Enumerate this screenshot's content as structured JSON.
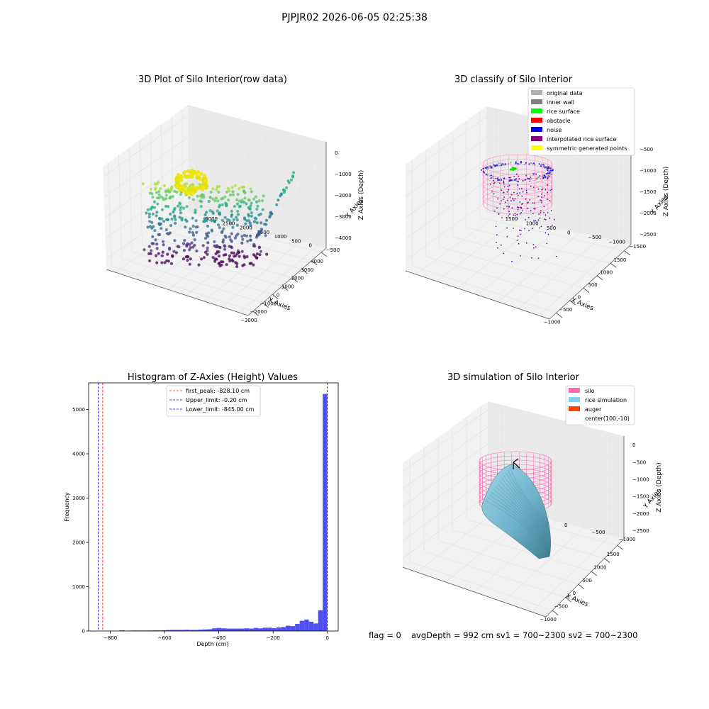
{
  "suptitle": "PJPJR02 2026-06-05 02:25:38",
  "footer": {
    "flag": "flag = 0",
    "stats": "avgDepth = 992 cm  sv1 = 700~2300  sv2 = 700~2300"
  },
  "chart_data": [
    {
      "type": "scatter",
      "title": "3D Plot of Silo Interior(row data)",
      "xlabel": "X Axies",
      "ylabel": "Y Axies",
      "zlabel": "Z Axies (Depth)",
      "x_ticks": [
        "−3000",
        "−2000",
        "−1000",
        "0",
        "1000",
        "2000",
        "3000",
        "4000"
      ],
      "y_ticks": [
        "−500",
        "0",
        "500",
        "1000",
        "1500",
        "2000",
        "2500",
        "3000"
      ],
      "z_ticks": [
        "0",
        "−1000",
        "−2000",
        "−3000",
        "−4000"
      ],
      "xlim": [
        -3300,
        4300
      ],
      "ylim": [
        -600,
        3100
      ],
      "zlim": [
        -4800,
        200
      ],
      "colormap": "viridis"
    },
    {
      "type": "scatter",
      "title": "3D classify of Silo Interior",
      "xlabel": "X Axies",
      "ylabel": "Y Axies",
      "zlabel": "Z Axies (Depth)",
      "x_ticks": [
        "−1000",
        "−500",
        "0",
        "500",
        "1000",
        "1500"
      ],
      "y_ticks": [
        "−1500",
        "−1000",
        "−500",
        "0",
        "500",
        "1000",
        "1500"
      ],
      "z_ticks": [
        "−500",
        "−1000",
        "−1500",
        "−2000",
        "−2500"
      ],
      "xlim": [
        -1300,
        1600
      ],
      "ylim": [
        -1600,
        1600
      ],
      "zlim": [
        -2700,
        0
      ],
      "legend": [
        {
          "label": "original data",
          "color": "#b0b0b0"
        },
        {
          "label": "inner wall",
          "color": "#808080"
        },
        {
          "label": "rice surface",
          "color": "#00ff00"
        },
        {
          "label": "obstacle",
          "color": "#ff0000"
        },
        {
          "label": "noise",
          "color": "#0000ff"
        },
        {
          "label": "interpolated rice surface",
          "color": "#800080"
        },
        {
          "label": "symmetric generated points",
          "color": "#ffff00"
        }
      ],
      "legend_loc": "upper right"
    },
    {
      "type": "bar",
      "title": "Histogram of Z-Axies (Height) Values",
      "xlabel": "Depth (cm)",
      "ylabel": "Frequency",
      "xlim": [
        -880,
        40
      ],
      "ylim": [
        0,
        5600
      ],
      "x_ticks": [
        -800,
        -600,
        -400,
        -200,
        0
      ],
      "x_tick_labels": [
        "−800",
        "−600",
        "−400",
        "−200",
        "0"
      ],
      "y_ticks": [
        0,
        1000,
        2000,
        3000,
        4000,
        5000
      ],
      "y_tick_labels": [
        "0",
        "1000",
        "2000",
        "3000",
        "4000",
        "5000"
      ],
      "bar_color": "#4f4ff5",
      "bin_width": 17,
      "bins": [
        {
          "x": -850,
          "v": 2
        },
        {
          "x": -833,
          "v": 3
        },
        {
          "x": -816,
          "v": 3
        },
        {
          "x": -799,
          "v": 4
        },
        {
          "x": -782,
          "v": 5
        },
        {
          "x": -765,
          "v": 15
        },
        {
          "x": -748,
          "v": 8
        },
        {
          "x": -731,
          "v": 10
        },
        {
          "x": -714,
          "v": 12
        },
        {
          "x": -697,
          "v": 12
        },
        {
          "x": -680,
          "v": 12
        },
        {
          "x": -663,
          "v": 12
        },
        {
          "x": -646,
          "v": 14
        },
        {
          "x": -629,
          "v": 14
        },
        {
          "x": -612,
          "v": 18
        },
        {
          "x": -595,
          "v": 22
        },
        {
          "x": -578,
          "v": 25
        },
        {
          "x": -561,
          "v": 25
        },
        {
          "x": -544,
          "v": 25
        },
        {
          "x": -527,
          "v": 28
        },
        {
          "x": -510,
          "v": 25
        },
        {
          "x": -493,
          "v": 25
        },
        {
          "x": -476,
          "v": 30
        },
        {
          "x": -459,
          "v": 35
        },
        {
          "x": -442,
          "v": 40
        },
        {
          "x": -425,
          "v": 60
        },
        {
          "x": -408,
          "v": 70
        },
        {
          "x": -391,
          "v": 60
        },
        {
          "x": -374,
          "v": 55
        },
        {
          "x": -357,
          "v": 55
        },
        {
          "x": -340,
          "v": 55
        },
        {
          "x": -323,
          "v": 55
        },
        {
          "x": -306,
          "v": 60
        },
        {
          "x": -289,
          "v": 55
        },
        {
          "x": -272,
          "v": 70
        },
        {
          "x": -255,
          "v": 60
        },
        {
          "x": -238,
          "v": 75
        },
        {
          "x": -221,
          "v": 75
        },
        {
          "x": -204,
          "v": 65
        },
        {
          "x": -187,
          "v": 80
        },
        {
          "x": -170,
          "v": 90
        },
        {
          "x": -153,
          "v": 120
        },
        {
          "x": -136,
          "v": 110
        },
        {
          "x": -119,
          "v": 160
        },
        {
          "x": -102,
          "v": 230
        },
        {
          "x": -85,
          "v": 260
        },
        {
          "x": -68,
          "v": 210
        },
        {
          "x": -51,
          "v": 170
        },
        {
          "x": -34,
          "v": 470
        },
        {
          "x": -17,
          "v": 5350
        }
      ],
      "vlines": [
        {
          "label": "first_peak: -828.10 cm",
          "x": -828.1,
          "color": "#ff0000"
        },
        {
          "label": "Upper_limit: -0.20 cm",
          "x": -0.2,
          "color": "#000080"
        },
        {
          "label": "Lower_limit: -845.00 cm",
          "x": -845.0,
          "color": "#0000ff"
        }
      ],
      "legend_loc": "upper center"
    },
    {
      "type": "surface",
      "title": "3D simulation of Silo Interior",
      "xlabel": "X Axies",
      "ylabel": "Y Axies",
      "zlabel": "Z Axies (Depth)",
      "x_ticks": [
        "−1000",
        "−500",
        "0",
        "500",
        "1000",
        "1500"
      ],
      "y_ticks": [
        "−1000",
        "−500",
        "0",
        "500",
        "1000"
      ],
      "z_ticks": [
        "0",
        "−500",
        "−1000",
        "−1500",
        "−2000",
        "−2500"
      ],
      "xlim": [
        -1300,
        1600
      ],
      "ylim": [
        -1300,
        1300
      ],
      "zlim": [
        -2600,
        200
      ],
      "legend": [
        {
          "label": "silo",
          "color": "#ff69b4"
        },
        {
          "label": "rice simulation",
          "color": "#87ceeb"
        },
        {
          "label": "auger",
          "color": "#ff4500"
        },
        {
          "label": "center(100,-10)",
          "color": "#000000"
        }
      ],
      "legend_loc": "upper right"
    }
  ]
}
